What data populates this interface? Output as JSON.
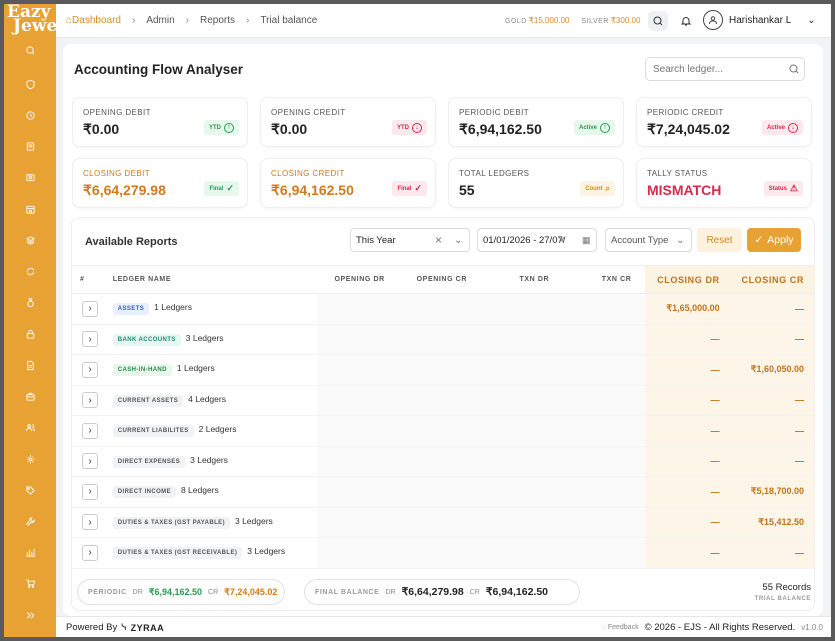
{
  "brand": {
    "logo_line1": "Eazy",
    "logo_line2": "Jewel"
  },
  "breadcrumb": [
    "Dashboard",
    "Admin",
    "Reports",
    "Trial balance"
  ],
  "rates": {
    "gold_label": "GOLD",
    "gold_value": "₹15,000.00",
    "silver_label": "SILVER",
    "silver_value": "₹300.00"
  },
  "user": {
    "name": "Harishankar L"
  },
  "page": {
    "title": "Accounting Flow Analyser",
    "search_placeholder": "Search ledger..."
  },
  "cards": [
    {
      "label": "OPENING DEBIT",
      "value": "₹0.00",
      "badge": "YTD",
      "badge_icon": "arrow-up-circle-icon"
    },
    {
      "label": "OPENING CREDIT",
      "value": "₹0.00",
      "badge": "YTD",
      "badge_icon": "arrow-down-circle-icon"
    },
    {
      "label": "PERIODIC DEBIT",
      "value": "₹6,94,162.50",
      "badge": "Active",
      "badge_icon": "arrow-up-circle-icon"
    },
    {
      "label": "PERIODIC CREDIT",
      "value": "₹7,24,045.02",
      "badge": "Active",
      "badge_icon": "arrow-down-circle-icon"
    },
    {
      "label": "CLOSING DEBIT",
      "value": "₹6,64,279.98",
      "badge": "Final",
      "badge_icon": "check-icon"
    },
    {
      "label": "CLOSING CREDIT",
      "value": "₹6,94,162.50",
      "badge": "Final",
      "badge_icon": "check-icon"
    },
    {
      "label": "TOTAL LEDGERS",
      "value": "55",
      "badge": "Count",
      "badge_icon": "count-icon"
    },
    {
      "label": "TALLY STATUS",
      "value": "MISMATCH",
      "badge": "Status",
      "badge_icon": "warning-icon"
    }
  ],
  "reports": {
    "title": "Available Reports",
    "period": "This Year",
    "date_range": "01/01/2026 - 27/07/",
    "account_type_placeholder": "Account Type",
    "reset_label": "Reset",
    "apply_label": "Apply",
    "columns": [
      "#",
      "LEDGER NAME",
      "OPENING DR",
      "OPENING CR",
      "TXN DR",
      "TXN CR",
      "CLOSING DR",
      "CLOSING CR"
    ],
    "rows": [
      {
        "tag": "ASSETS",
        "count": "1 Ledgers",
        "closing_dr": "₹1,65,000.00",
        "closing_cr": "—"
      },
      {
        "tag": "BANK ACCOUNTS",
        "count": "3 Ledgers",
        "closing_dr": "—",
        "closing_cr": "—"
      },
      {
        "tag": "CASH-IN-HAND",
        "count": "1 Ledgers",
        "closing_dr": "—",
        "closing_cr": "₹1,60,050.00"
      },
      {
        "tag": "CURRENT ASSETS",
        "count": "4 Ledgers",
        "closing_dr": "—",
        "closing_cr": "—"
      },
      {
        "tag": "CURRENT LIABILITES",
        "count": "2 Ledgers",
        "closing_dr": "—",
        "closing_cr": "—"
      },
      {
        "tag": "DIRECT EXPENSES",
        "count": "3 Ledgers",
        "closing_dr": "—",
        "closing_cr": "—"
      },
      {
        "tag": "DIRECT INCOME",
        "count": "8 Ledgers",
        "closing_dr": "—",
        "closing_cr": "₹5,18,700.00"
      },
      {
        "tag": "DUTIES & TAXES (GST PAYABLE)",
        "count": "3 Ledgers",
        "closing_dr": "—",
        "closing_cr": "₹15,412.50"
      },
      {
        "tag": "DUTIES & TAXES (GST RECEIVABLE)",
        "count": "3 Ledgers",
        "closing_dr": "—",
        "closing_cr": "—"
      }
    ]
  },
  "summary": {
    "periodic_label": "PERIODIC",
    "dr_label": "DR",
    "periodic_dr": "₹6,94,162.50",
    "cr_label": "CR",
    "periodic_cr": "₹7,24,045.02",
    "final_label": "FINAL BALANCE",
    "final_dr": "₹6,64,279.98",
    "final_cr": "₹6,94,162.50",
    "records": "55 Records",
    "records_sub": "TRIAL BALANCE"
  },
  "footer": {
    "powered_by": "Powered By",
    "company": "ZYRAA",
    "feedback": "Feedback",
    "copyright": "© 2026 - EJS - All Rights Reserved.",
    "version": "v1.0.0"
  },
  "colors": {
    "accent": "#e8a133",
    "closing": "#c0731a",
    "mismatch": "#d6294b"
  }
}
